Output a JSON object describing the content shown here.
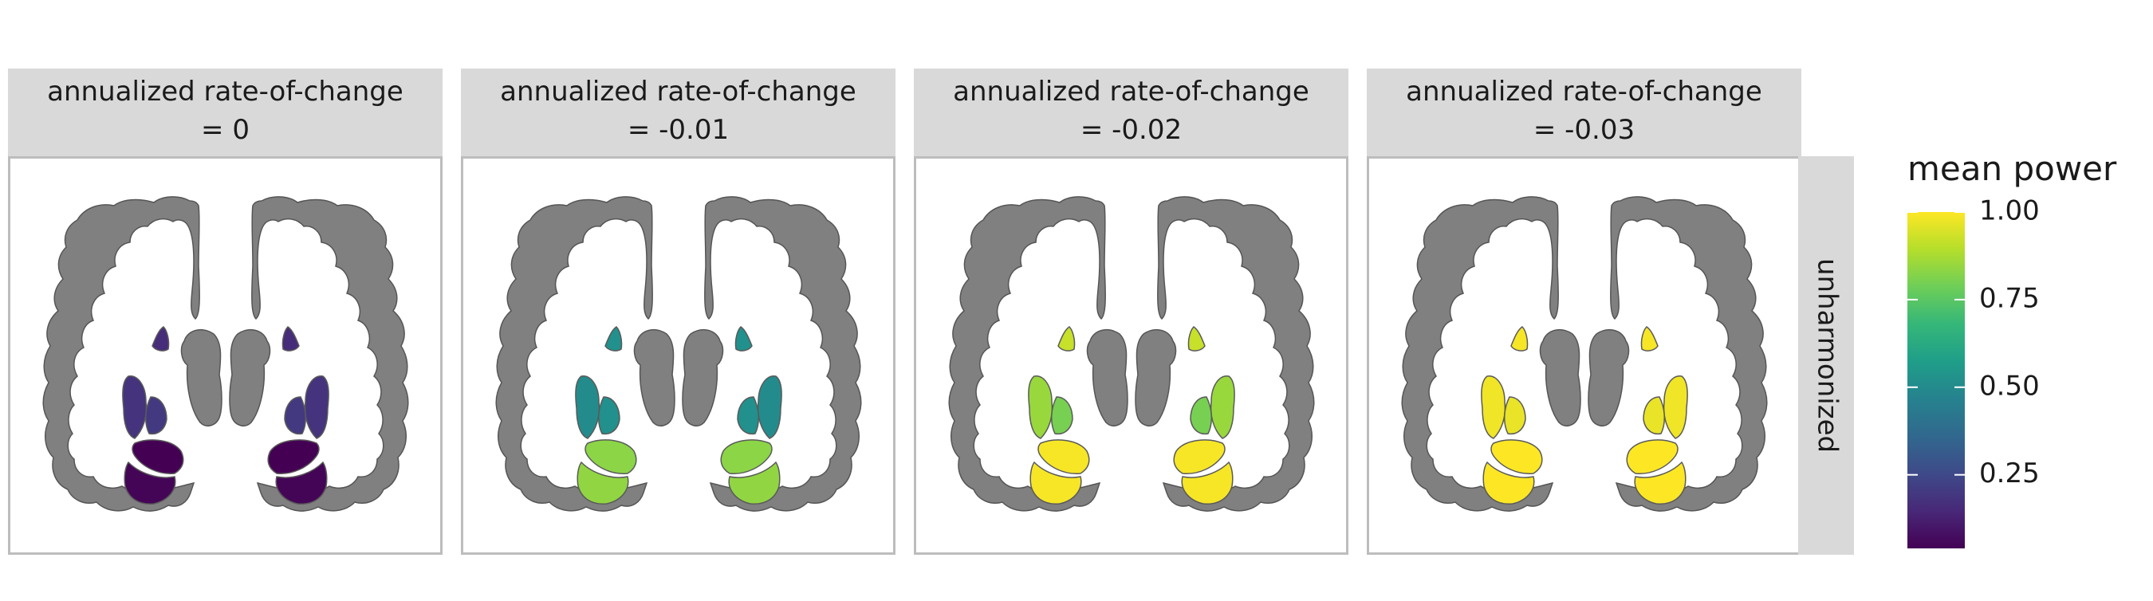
{
  "chart_data": {
    "type": "heatmap",
    "panels": [
      {
        "strip_line1": "annualized rate-of-change",
        "strip_line2": "= 0",
        "rate_of_change": 0,
        "regions": {
          "caudate": 0.16,
          "putamen_upper": 0.18,
          "putamen_lower": 0.2,
          "hippocampus": 0.04,
          "temporal": 0.05
        }
      },
      {
        "strip_line1": "annualized rate-of-change",
        "strip_line2": "= -0.01",
        "rate_of_change": -0.01,
        "regions": {
          "caudate": 0.52,
          "putamen_upper": 0.5,
          "putamen_lower": 0.52,
          "hippocampus": 0.83,
          "temporal": 0.84
        }
      },
      {
        "strip_line1": "annualized rate-of-change",
        "strip_line2": "= -0.02",
        "rate_of_change": -0.02,
        "regions": {
          "caudate": 0.92,
          "putamen_upper": 0.85,
          "putamen_lower": 0.8,
          "hippocampus": 0.99,
          "temporal": 0.99
        }
      },
      {
        "strip_line1": "annualized rate-of-change",
        "strip_line2": "= -0.03",
        "rate_of_change": -0.03,
        "regions": {
          "caudate": 0.99,
          "putamen_upper": 0.98,
          "putamen_lower": 0.97,
          "hippocampus": 1.0,
          "temporal": 1.0
        }
      }
    ],
    "row_strip": "unharmonized",
    "legend": {
      "title": "mean power",
      "ticks": [
        {
          "value": 0.25,
          "label": "0.25"
        },
        {
          "value": 0.5,
          "label": "0.50"
        },
        {
          "value": 0.75,
          "label": "0.75"
        },
        {
          "value": 1.0,
          "label": "1.00"
        }
      ],
      "range": [
        0.04,
        1.0
      ],
      "colormap": "viridis",
      "placement": "right"
    },
    "colors": {
      "cortex_fill": "#808080",
      "cortex_stroke": "#555555",
      "strip_bg": "#d9d9d9",
      "panel_border": "#bdbdbd",
      "viridis_stops": [
        "#440154",
        "#482878",
        "#3e4a89",
        "#31688e",
        "#26828e",
        "#1f9e89",
        "#35b779",
        "#6ece58",
        "#b5de2b",
        "#fde725"
      ]
    }
  }
}
